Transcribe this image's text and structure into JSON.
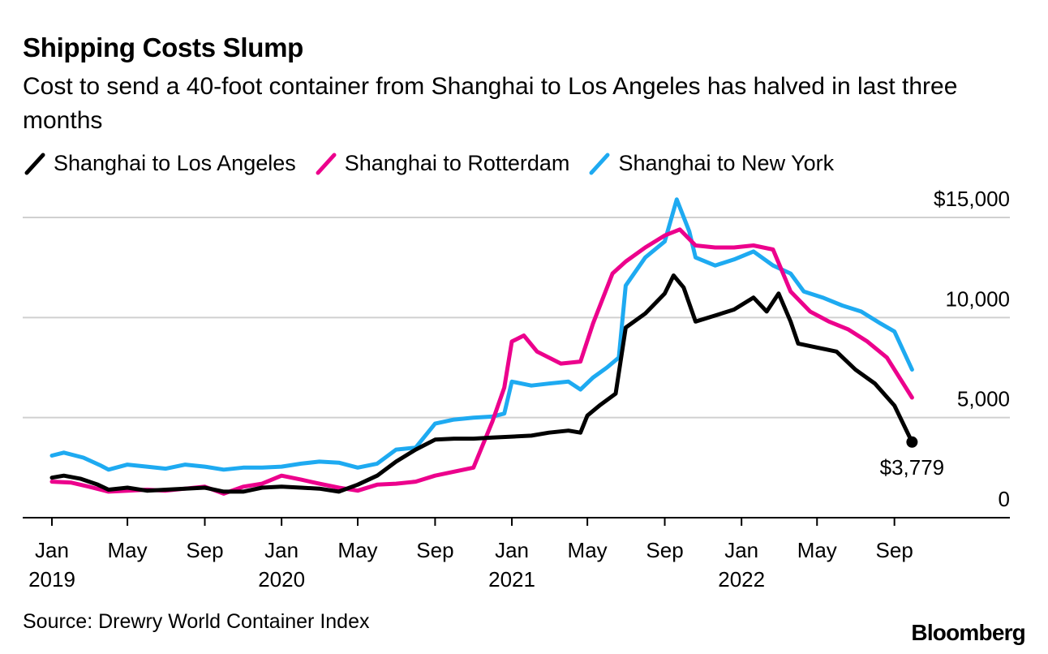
{
  "title": "Shipping Costs Slump",
  "subtitle": "Cost to send a 40-foot container from Shanghai to Los Angeles has halved in last three months",
  "source": "Source: Drewry World Container Index",
  "brand": "Bloomberg",
  "chart_data": {
    "type": "line",
    "title": "Shipping Costs Slump",
    "subtitle": "Cost to send a 40-foot container from Shanghai to Los Angeles has halved in last three months",
    "xlabel": "",
    "ylabel": "",
    "ylim": [
      0,
      15000
    ],
    "xlim": [
      "2019-01-01",
      "2022-09-29"
    ],
    "y_ticks": [
      {
        "value": 15000,
        "label": "$15,000"
      },
      {
        "value": 10000,
        "label": "10,000"
      },
      {
        "value": 5000,
        "label": "5,000"
      },
      {
        "value": 0,
        "label": "0"
      }
    ],
    "x_ticks": [
      {
        "date": "2019-01-01",
        "month": "Jan",
        "year": "2019"
      },
      {
        "date": "2019-05-01",
        "month": "May",
        "year": ""
      },
      {
        "date": "2019-09-01",
        "month": "Sep",
        "year": ""
      },
      {
        "date": "2020-01-01",
        "month": "Jan",
        "year": "2020"
      },
      {
        "date": "2020-05-01",
        "month": "May",
        "year": ""
      },
      {
        "date": "2020-09-01",
        "month": "Sep",
        "year": ""
      },
      {
        "date": "2021-01-01",
        "month": "Jan",
        "year": "2021"
      },
      {
        "date": "2021-05-01",
        "month": "May",
        "year": ""
      },
      {
        "date": "2021-09-01",
        "month": "Sep",
        "year": ""
      },
      {
        "date": "2022-01-01",
        "month": "Jan",
        "year": "2022"
      },
      {
        "date": "2022-05-01",
        "month": "May",
        "year": ""
      },
      {
        "date": "2022-09-01",
        "month": "Sep",
        "year": ""
      }
    ],
    "grid": true,
    "legend_position": "top-left",
    "annotation": {
      "label": "$3,779",
      "series": "Shanghai to Los Angeles",
      "date": "2022-09-29",
      "value": 3779
    },
    "series": [
      {
        "name": "Shanghai to Los Angeles",
        "color": "#000000",
        "points": [
          [
            "2019-01-01",
            2000
          ],
          [
            "2019-01-20",
            2100
          ],
          [
            "2019-02-15",
            1950
          ],
          [
            "2019-03-15",
            1650
          ],
          [
            "2019-04-01",
            1400
          ],
          [
            "2019-05-01",
            1500
          ],
          [
            "2019-06-01",
            1350
          ],
          [
            "2019-07-01",
            1400
          ],
          [
            "2019-08-01",
            1450
          ],
          [
            "2019-09-01",
            1500
          ],
          [
            "2019-10-01",
            1300
          ],
          [
            "2019-11-01",
            1300
          ],
          [
            "2019-12-01",
            1500
          ],
          [
            "2020-01-01",
            1550
          ],
          [
            "2020-02-01",
            1500
          ],
          [
            "2020-03-01",
            1450
          ],
          [
            "2020-04-01",
            1300
          ],
          [
            "2020-05-01",
            1650
          ],
          [
            "2020-06-01",
            2100
          ],
          [
            "2020-07-01",
            2800
          ],
          [
            "2020-08-01",
            3400
          ],
          [
            "2020-09-01",
            3900
          ],
          [
            "2020-10-01",
            3950
          ],
          [
            "2020-11-01",
            3950
          ],
          [
            "2020-12-01",
            4000
          ],
          [
            "2021-01-01",
            4050
          ],
          [
            "2021-02-01",
            4100
          ],
          [
            "2021-03-01",
            4250
          ],
          [
            "2021-04-01",
            4350
          ],
          [
            "2021-04-20",
            4250
          ],
          [
            "2021-05-01",
            5100
          ],
          [
            "2021-05-20",
            5600
          ],
          [
            "2021-06-15",
            6200
          ],
          [
            "2021-07-01",
            9500
          ],
          [
            "2021-08-01",
            10200
          ],
          [
            "2021-09-01",
            11200
          ],
          [
            "2021-09-15",
            12100
          ],
          [
            "2021-10-01",
            11500
          ],
          [
            "2021-10-20",
            9800
          ],
          [
            "2021-11-20",
            10100
          ],
          [
            "2021-12-20",
            10400
          ],
          [
            "2022-01-20",
            11000
          ],
          [
            "2022-02-10",
            10300
          ],
          [
            "2022-03-01",
            11200
          ],
          [
            "2022-03-20",
            9800
          ],
          [
            "2022-04-01",
            8700
          ],
          [
            "2022-05-01",
            8500
          ],
          [
            "2022-06-01",
            8300
          ],
          [
            "2022-07-01",
            7400
          ],
          [
            "2022-08-01",
            6700
          ],
          [
            "2022-09-01",
            5600
          ],
          [
            "2022-09-29",
            3779
          ]
        ]
      },
      {
        "name": "Shanghai to Rotterdam",
        "color": "#ec008c",
        "points": [
          [
            "2019-01-01",
            1800
          ],
          [
            "2019-02-01",
            1750
          ],
          [
            "2019-03-01",
            1550
          ],
          [
            "2019-04-01",
            1300
          ],
          [
            "2019-05-01",
            1350
          ],
          [
            "2019-06-01",
            1400
          ],
          [
            "2019-07-01",
            1350
          ],
          [
            "2019-08-01",
            1450
          ],
          [
            "2019-09-01",
            1550
          ],
          [
            "2019-10-01",
            1200
          ],
          [
            "2019-11-01",
            1550
          ],
          [
            "2019-12-01",
            1700
          ],
          [
            "2020-01-01",
            2100
          ],
          [
            "2020-02-01",
            1900
          ],
          [
            "2020-03-01",
            1700
          ],
          [
            "2020-04-01",
            1500
          ],
          [
            "2020-05-01",
            1350
          ],
          [
            "2020-06-01",
            1650
          ],
          [
            "2020-07-01",
            1700
          ],
          [
            "2020-08-01",
            1800
          ],
          [
            "2020-09-01",
            2100
          ],
          [
            "2020-10-01",
            2300
          ],
          [
            "2020-11-01",
            2500
          ],
          [
            "2020-12-01",
            4800
          ],
          [
            "2020-12-20",
            6500
          ],
          [
            "2021-01-01",
            8800
          ],
          [
            "2021-01-20",
            9100
          ],
          [
            "2021-02-10",
            8300
          ],
          [
            "2021-03-20",
            7700
          ],
          [
            "2021-04-20",
            7800
          ],
          [
            "2021-05-10",
            9700
          ],
          [
            "2021-06-10",
            12200
          ],
          [
            "2021-07-01",
            12800
          ],
          [
            "2021-08-01",
            13500
          ],
          [
            "2021-09-01",
            14100
          ],
          [
            "2021-09-25",
            14400
          ],
          [
            "2021-10-20",
            13600
          ],
          [
            "2021-11-20",
            13500
          ],
          [
            "2021-12-20",
            13500
          ],
          [
            "2022-01-20",
            13600
          ],
          [
            "2022-02-20",
            13400
          ],
          [
            "2022-03-20",
            11300
          ],
          [
            "2022-04-20",
            10300
          ],
          [
            "2022-05-20",
            9800
          ],
          [
            "2022-06-20",
            9400
          ],
          [
            "2022-07-20",
            8800
          ],
          [
            "2022-08-20",
            8000
          ],
          [
            "2022-09-29",
            6000
          ]
        ]
      },
      {
        "name": "Shanghai to New York",
        "color": "#1eaaf1",
        "points": [
          [
            "2019-01-01",
            3100
          ],
          [
            "2019-01-20",
            3250
          ],
          [
            "2019-02-20",
            3000
          ],
          [
            "2019-03-20",
            2600
          ],
          [
            "2019-04-01",
            2400
          ],
          [
            "2019-05-01",
            2650
          ],
          [
            "2019-06-01",
            2550
          ],
          [
            "2019-07-01",
            2450
          ],
          [
            "2019-08-01",
            2650
          ],
          [
            "2019-09-01",
            2550
          ],
          [
            "2019-10-01",
            2400
          ],
          [
            "2019-11-01",
            2500
          ],
          [
            "2019-12-01",
            2500
          ],
          [
            "2020-01-01",
            2550
          ],
          [
            "2020-02-01",
            2700
          ],
          [
            "2020-03-01",
            2800
          ],
          [
            "2020-04-01",
            2750
          ],
          [
            "2020-05-01",
            2500
          ],
          [
            "2020-06-01",
            2700
          ],
          [
            "2020-07-01",
            3400
          ],
          [
            "2020-08-01",
            3500
          ],
          [
            "2020-09-01",
            4700
          ],
          [
            "2020-10-01",
            4900
          ],
          [
            "2020-11-01",
            5000
          ],
          [
            "2020-12-01",
            5050
          ],
          [
            "2020-12-20",
            5200
          ],
          [
            "2021-01-01",
            6800
          ],
          [
            "2021-02-01",
            6600
          ],
          [
            "2021-03-01",
            6700
          ],
          [
            "2021-04-01",
            6800
          ],
          [
            "2021-04-20",
            6400
          ],
          [
            "2021-05-10",
            7000
          ],
          [
            "2021-06-01",
            7500
          ],
          [
            "2021-06-20",
            8000
          ],
          [
            "2021-07-01",
            11600
          ],
          [
            "2021-08-01",
            13000
          ],
          [
            "2021-09-01",
            13800
          ],
          [
            "2021-09-20",
            15900
          ],
          [
            "2021-10-10",
            14300
          ],
          [
            "2021-10-20",
            13000
          ],
          [
            "2021-11-20",
            12600
          ],
          [
            "2021-12-20",
            12900
          ],
          [
            "2022-01-20",
            13300
          ],
          [
            "2022-02-20",
            12600
          ],
          [
            "2022-03-20",
            12200
          ],
          [
            "2022-04-10",
            11300
          ],
          [
            "2022-05-10",
            11000
          ],
          [
            "2022-06-10",
            10600
          ],
          [
            "2022-07-10",
            10300
          ],
          [
            "2022-08-10",
            9700
          ],
          [
            "2022-09-01",
            9300
          ],
          [
            "2022-09-29",
            7400
          ]
        ]
      }
    ]
  }
}
